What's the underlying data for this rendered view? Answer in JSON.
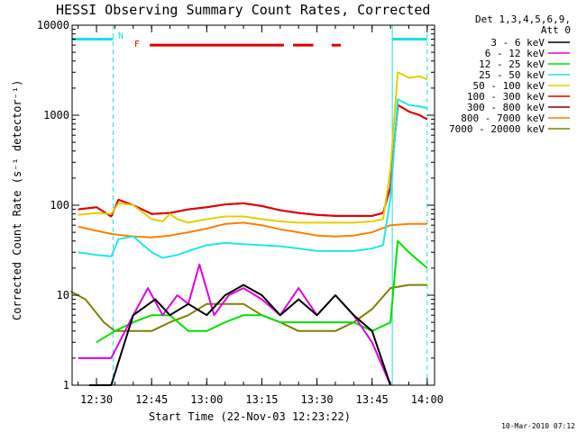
{
  "chart_data": {
    "type": "line",
    "title": "HESSI Observing Summary Count Rates, Corrected",
    "xlabel": "Start Time (22-Nov-03 12:23:22)",
    "ylabel": "Corrected Count Rate (s⁻¹ detector⁻¹)",
    "yscale": "log",
    "ylim": [
      1,
      10000
    ],
    "xlim": [
      "12:23:22",
      "14:02:00"
    ],
    "x_ticks": [
      "12:30",
      "12:45",
      "13:00",
      "13:15",
      "13:30",
      "13:45",
      "14:00"
    ],
    "y_ticks": [
      "1",
      "10",
      "100",
      "1000",
      "10000"
    ],
    "legend_header": [
      "Det 1,3,4,5,6,9,",
      "Att 0"
    ],
    "footer_date": "10-Mar-2010 07:12",
    "flags": [
      {
        "label": "N",
        "color": "#22dde0"
      },
      {
        "label": "F",
        "color": "#e00000"
      }
    ],
    "night_intervals": [
      [
        "12:23:22",
        "12:34:30"
      ],
      [
        "13:50:30",
        "14:00:00"
      ]
    ],
    "flare_intervals": [
      [
        "12:44:30",
        "13:21:00"
      ],
      [
        "13:23:30",
        "13:29:00"
      ],
      [
        "13:34:00",
        "13:36:30"
      ]
    ],
    "vlines": [
      "12:23:22",
      "12:34:30",
      "13:50:30",
      "14:00:00"
    ],
    "series": [
      {
        "name": "3 - 6 keV",
        "color": "#000000",
        "x": [
          "12:28",
          "12:34",
          "12:40",
          "12:46",
          "12:50",
          "12:55",
          "13:00",
          "13:05",
          "13:10",
          "13:15",
          "13:20",
          "13:25",
          "13:30",
          "13:35",
          "13:40",
          "13:45",
          "13:50"
        ],
        "y": [
          0,
          0,
          6,
          9,
          6,
          8,
          6,
          10,
          13,
          10,
          6,
          9,
          6,
          10,
          6,
          4,
          1
        ]
      },
      {
        "name": "6 - 12 keV",
        "color": "#e000e0",
        "x": [
          "12:25",
          "12:30",
          "12:34",
          "12:40",
          "12:44",
          "12:48",
          "12:52",
          "12:55",
          "12:58",
          "13:02",
          "13:06",
          "13:10",
          "13:15",
          "13:20",
          "13:25",
          "13:30",
          "13:35",
          "13:40",
          "13:45",
          "13:50"
        ],
        "y": [
          2,
          2,
          2,
          6,
          12,
          6,
          10,
          8,
          22,
          6,
          10,
          12,
          9,
          6,
          12,
          6,
          10,
          6,
          3,
          1
        ]
      },
      {
        "name": "12 - 25 keV",
        "color": "#00e000",
        "x": [
          "12:30",
          "12:35",
          "12:40",
          "12:45",
          "12:50",
          "12:55",
          "13:00",
          "13:05",
          "13:10",
          "13:15",
          "13:20",
          "13:25",
          "13:30",
          "13:35",
          "13:40",
          "13:45",
          "13:50",
          "13:52",
          "13:55",
          "14:00"
        ],
        "y": [
          3,
          4,
          5,
          6,
          6,
          4,
          4,
          5,
          6,
          6,
          5,
          5,
          5,
          5,
          5,
          4,
          5,
          40,
          30,
          20
        ]
      },
      {
        "name": "25 - 50 keV",
        "color": "#22e6e6",
        "x": [
          "12:25",
          "12:30",
          "12:34",
          "12:36",
          "12:40",
          "12:45",
          "12:48",
          "12:52",
          "12:56",
          "13:00",
          "13:05",
          "13:10",
          "13:15",
          "13:20",
          "13:25",
          "13:30",
          "13:35",
          "13:40",
          "13:45",
          "13:48",
          "13:50",
          "13:52",
          "13:55",
          "13:58",
          "14:00"
        ],
        "y": [
          30,
          28,
          27,
          42,
          45,
          30,
          26,
          28,
          32,
          36,
          38,
          37,
          36,
          35,
          33,
          31,
          31,
          31,
          33,
          36,
          120,
          1500,
          1300,
          1250,
          1200
        ]
      },
      {
        "name": "50 - 100 keV",
        "color": "#e0d000",
        "x": [
          "12:25",
          "12:30",
          "12:34",
          "12:36",
          "12:40",
          "12:45",
          "12:48",
          "12:50",
          "12:52",
          "12:55",
          "13:00",
          "13:05",
          "13:10",
          "13:15",
          "13:20",
          "13:25",
          "13:30",
          "13:35",
          "13:40",
          "13:45",
          "13:48",
          "13:50",
          "13:52",
          "13:55",
          "13:58",
          "14:00"
        ],
        "y": [
          78,
          82,
          80,
          105,
          100,
          70,
          66,
          80,
          70,
          64,
          70,
          75,
          75,
          70,
          66,
          64,
          64,
          64,
          64,
          66,
          70,
          250,
          3000,
          2600,
          2700,
          2500
        ]
      },
      {
        "name": "100 - 300 keV",
        "color": "#e00000",
        "x": [
          "12:25",
          "12:30",
          "12:34",
          "12:36",
          "12:40",
          "12:45",
          "12:50",
          "12:55",
          "13:00",
          "13:05",
          "13:10",
          "13:15",
          "13:20",
          "13:25",
          "13:30",
          "13:35",
          "13:40",
          "13:45",
          "13:48",
          "13:50",
          "13:52",
          "13:55",
          "13:58",
          "14:00"
        ],
        "y": [
          90,
          95,
          75,
          115,
          100,
          80,
          82,
          90,
          95,
          102,
          105,
          98,
          88,
          82,
          78,
          76,
          76,
          76,
          82,
          160,
          1300,
          1100,
          1000,
          900
        ]
      },
      {
        "name": "300 - 800 keV",
        "color": "#800000",
        "x": [
          "12:25",
          "12:30",
          "12:34",
          "12:36",
          "12:40",
          "12:45",
          "12:50",
          "12:55",
          "13:00",
          "13:05",
          "13:10",
          "13:15",
          "13:20",
          "13:25",
          "13:30",
          "13:35",
          "13:40",
          "13:45",
          "13:48",
          "13:50",
          "13:52",
          "13:55",
          "13:58",
          "14:00"
        ],
        "y": [
          90,
          95,
          75,
          115,
          100,
          80,
          82,
          90,
          95,
          102,
          105,
          98,
          88,
          82,
          78,
          76,
          76,
          76,
          82,
          160,
          1300,
          1100,
          1000,
          900
        ]
      },
      {
        "name": "800 - 7000 keV",
        "color": "#ff7f00",
        "x": [
          "12:25",
          "12:30",
          "12:34",
          "12:40",
          "12:45",
          "12:50",
          "12:55",
          "13:00",
          "13:05",
          "13:10",
          "13:15",
          "13:20",
          "13:25",
          "13:30",
          "13:35",
          "13:40",
          "13:45",
          "13:50",
          "13:55",
          "14:00"
        ],
        "y": [
          58,
          52,
          48,
          45,
          44,
          46,
          50,
          55,
          62,
          64,
          60,
          54,
          50,
          46,
          45,
          46,
          50,
          60,
          62,
          62
        ]
      },
      {
        "name": "7000 - 20000 keV",
        "color": "#808000",
        "x": [
          "12:23",
          "12:27",
          "12:32",
          "12:35",
          "12:40",
          "12:45",
          "12:50",
          "12:55",
          "13:00",
          "13:05",
          "13:10",
          "13:15",
          "13:20",
          "13:25",
          "13:30",
          "13:35",
          "13:40",
          "13:45",
          "13:50",
          "13:55",
          "14:00"
        ],
        "y": [
          11,
          9,
          5,
          4,
          4,
          4,
          5,
          6,
          8,
          8,
          8,
          6,
          5,
          4,
          4,
          4,
          5,
          7,
          12,
          13,
          13
        ]
      }
    ]
  }
}
